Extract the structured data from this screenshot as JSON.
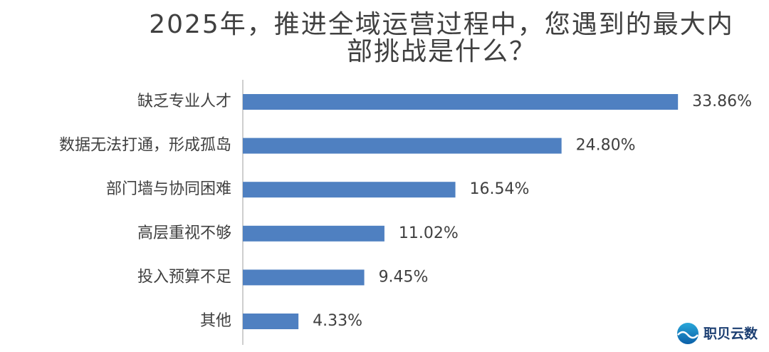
{
  "chart_data": {
    "type": "hbar",
    "title": "2025年，推进全域运营过程中，您遇到的最大内部挑战是什么？",
    "categories": [
      "缺乏专业人才",
      "数据无法打通，形成孤岛",
      "部门墙与协同困难",
      "高层重视不够",
      "投入预算不足",
      "其他"
    ],
    "values": [
      33.86,
      24.8,
      16.54,
      11.02,
      9.45,
      4.33
    ],
    "value_labels": [
      "33.86%",
      "24.80%",
      "16.54%",
      "11.02%",
      "9.45%",
      "4.33%"
    ],
    "color": "#4f80c1",
    "watermark": "职贝云数"
  }
}
